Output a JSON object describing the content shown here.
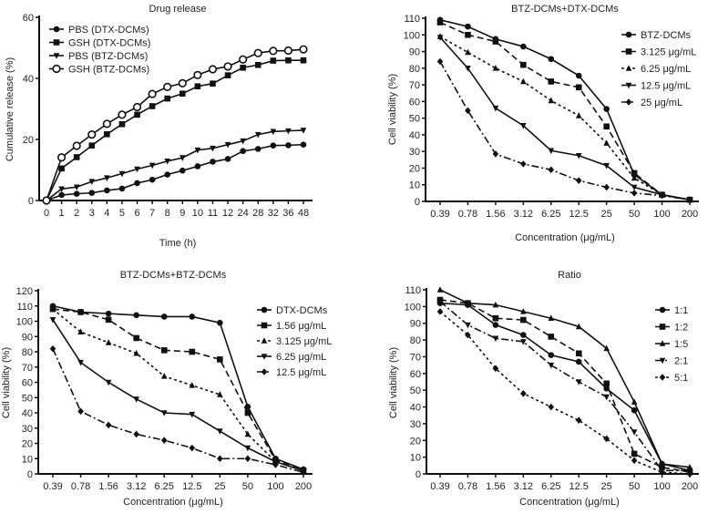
{
  "chart_data": [
    {
      "type": "line",
      "title": "Drug release",
      "xlabel": "Time (h)",
      "ylabel": "Cumulative release (%)",
      "ylim": [
        0,
        60
      ],
      "yticks": [
        "0",
        "20",
        "40",
        "60"
      ],
      "categories": [
        "0",
        "1",
        "2",
        "3",
        "4",
        "5",
        "6",
        "7",
        "8",
        "9",
        "10",
        "11",
        "12",
        "24",
        "28",
        "32",
        "36",
        "48"
      ],
      "legend_position": "top-left",
      "series": [
        {
          "name": "PBS (DTX-DCMs)",
          "marker": "circle",
          "dash": "solid",
          "values": [
            0,
            1.8,
            2.2,
            2.5,
            3.3,
            3.9,
            5.7,
            6.8,
            8.5,
            9.8,
            11.2,
            12.7,
            13.6,
            16.2,
            16.9,
            18,
            18.1,
            18.3
          ]
        },
        {
          "name": "GSH (DTX-DCMs)",
          "marker": "square",
          "dash": "solid",
          "values": [
            0,
            10.5,
            14.2,
            18,
            21.7,
            25,
            28.1,
            30.9,
            33.4,
            35,
            37.4,
            38.3,
            41,
            43.5,
            44.4,
            45.8,
            45.9,
            45.9
          ]
        },
        {
          "name": "PBS (BTZ-DCMs)",
          "marker": "triangle-down",
          "dash": "solid",
          "values": [
            0,
            3.8,
            4.4,
            6.2,
            7.4,
            8.8,
            10.3,
            11.5,
            12.9,
            14,
            16.5,
            17.1,
            18.3,
            19.5,
            21.6,
            22.6,
            22.8,
            23
          ]
        },
        {
          "name": "GSH (BTZ-DCMs)",
          "marker": "open-circle",
          "dash": "solid",
          "values": [
            0,
            14.1,
            17.9,
            21.6,
            25.1,
            28.1,
            30.6,
            34.9,
            37.2,
            38.4,
            41.1,
            43,
            43.9,
            46.2,
            48.3,
            49,
            49.1,
            49.5
          ]
        }
      ]
    },
    {
      "type": "line",
      "title": "BTZ-DCMs+DTX-DCMs",
      "xlabel": "Concentration (μg/mL)",
      "ylabel": "Cell viability (%)",
      "ylim": [
        0,
        110
      ],
      "yticks": [
        "0",
        "10",
        "20",
        "30",
        "40",
        "50",
        "60",
        "70",
        "80",
        "90",
        "100",
        "110"
      ],
      "categories": [
        "0.39",
        "0.78",
        "1.56",
        "3.12",
        "6.25",
        "12.5",
        "25",
        "50",
        "100",
        "200"
      ],
      "legend_position": "top-right",
      "series": [
        {
          "name": "BTZ-DCMs",
          "marker": "circle",
          "dash": "solid",
          "values": [
            109,
            105,
            97.5,
            93,
            85.5,
            75.5,
            55.5,
            16,
            4,
            1
          ]
        },
        {
          "name": "3.125 μg/mL",
          "marker": "square",
          "dash": "dashed",
          "values": [
            107.5,
            100,
            96,
            82,
            72,
            68.5,
            45,
            17,
            4,
            1
          ]
        },
        {
          "name": "6.25 μg/mL",
          "marker": "triangle-up",
          "dash": "dotted",
          "values": [
            99,
            89.5,
            80,
            72,
            60.5,
            51.5,
            35,
            14,
            4,
            1
          ]
        },
        {
          "name": "12.5 μg/mL",
          "marker": "triangle-down",
          "dash": "solid",
          "values": [
            98.5,
            80,
            56,
            45.5,
            30.5,
            27.5,
            21.5,
            8.5,
            4,
            1
          ]
        },
        {
          "name": "25 μg/mL",
          "marker": "diamond",
          "dash": "dashdot",
          "values": [
            84,
            54.5,
            28.5,
            22.5,
            19,
            12.5,
            8.5,
            5,
            3.5,
            1
          ]
        }
      ]
    },
    {
      "type": "line",
      "title": "BTZ-DCMs+BTZ-DCMs",
      "xlabel": "Concentration (μg/mL)",
      "ylabel": "Cell viability (%)",
      "ylim": [
        0,
        120
      ],
      "yticks": [
        "0",
        "10",
        "20",
        "30",
        "40",
        "50",
        "60",
        "70",
        "80",
        "90",
        "100",
        "110",
        "120"
      ],
      "categories": [
        "0.39",
        "0.78",
        "1.56",
        "3.12",
        "6.25",
        "12.5",
        "25",
        "50",
        "100",
        "200"
      ],
      "legend_position": "top-right",
      "series": [
        {
          "name": "DTX-DCMs",
          "marker": "circle",
          "dash": "solid",
          "values": [
            110,
            106,
            105,
            104,
            103,
            103,
            99,
            44,
            10,
            3
          ]
        },
        {
          "name": "1.56 μg/mL",
          "marker": "square",
          "dash": "dashed",
          "values": [
            108,
            106,
            101,
            89,
            81,
            80,
            75,
            40,
            9,
            2
          ]
        },
        {
          "name": "3.125 μg/mL",
          "marker": "triangle-up",
          "dash": "dotted",
          "values": [
            108,
            93,
            86,
            79,
            64,
            58,
            52,
            26,
            8,
            2
          ]
        },
        {
          "name": "6.25 μg/mL",
          "marker": "triangle-down",
          "dash": "solid",
          "values": [
            101,
            73,
            60,
            49,
            40,
            39,
            28,
            17,
            8,
            2
          ]
        },
        {
          "name": "12.5 μg/mL",
          "marker": "diamond",
          "dash": "dashdot",
          "values": [
            82,
            41,
            32,
            26,
            22,
            17,
            10,
            10,
            6,
            1
          ]
        }
      ]
    },
    {
      "type": "line",
      "title": "Ratio",
      "xlabel": "Concentration (μg/mL)",
      "ylabel": "Cell viability (%)",
      "ylim": [
        0,
        110
      ],
      "yticks": [
        "0",
        "10",
        "20",
        "30",
        "40",
        "50",
        "60",
        "70",
        "80",
        "90",
        "100",
        "110"
      ],
      "categories": [
        "0.39",
        "0.78",
        "1.56",
        "3.12",
        "6.25",
        "12.5",
        "25",
        "50",
        "100",
        "200"
      ],
      "legend_position": "top-right",
      "series": [
        {
          "name": "1:1",
          "marker": "circle",
          "dash": "solid",
          "values": [
            102,
            101,
            89,
            83,
            71,
            67,
            51,
            38,
            6,
            2
          ]
        },
        {
          "name": "1:2",
          "marker": "square",
          "dash": "dashed",
          "values": [
            104,
            102,
            93,
            92,
            82,
            72,
            54,
            12,
            4,
            1
          ]
        },
        {
          "name": "1:5",
          "marker": "triangle-up",
          "dash": "solid",
          "values": [
            110,
            102,
            101,
            97,
            93,
            88,
            75,
            43,
            6,
            4
          ]
        },
        {
          "name": "2:1",
          "marker": "triangle-down",
          "dash": "dashdot",
          "values": [
            103,
            89,
            81,
            79,
            65,
            55,
            46,
            25,
            2,
            2
          ]
        },
        {
          "name": "5:1",
          "marker": "diamond",
          "dash": "dotted",
          "values": [
            97,
            83,
            63,
            48,
            40,
            32,
            21,
            8,
            1,
            0
          ]
        }
      ]
    }
  ]
}
